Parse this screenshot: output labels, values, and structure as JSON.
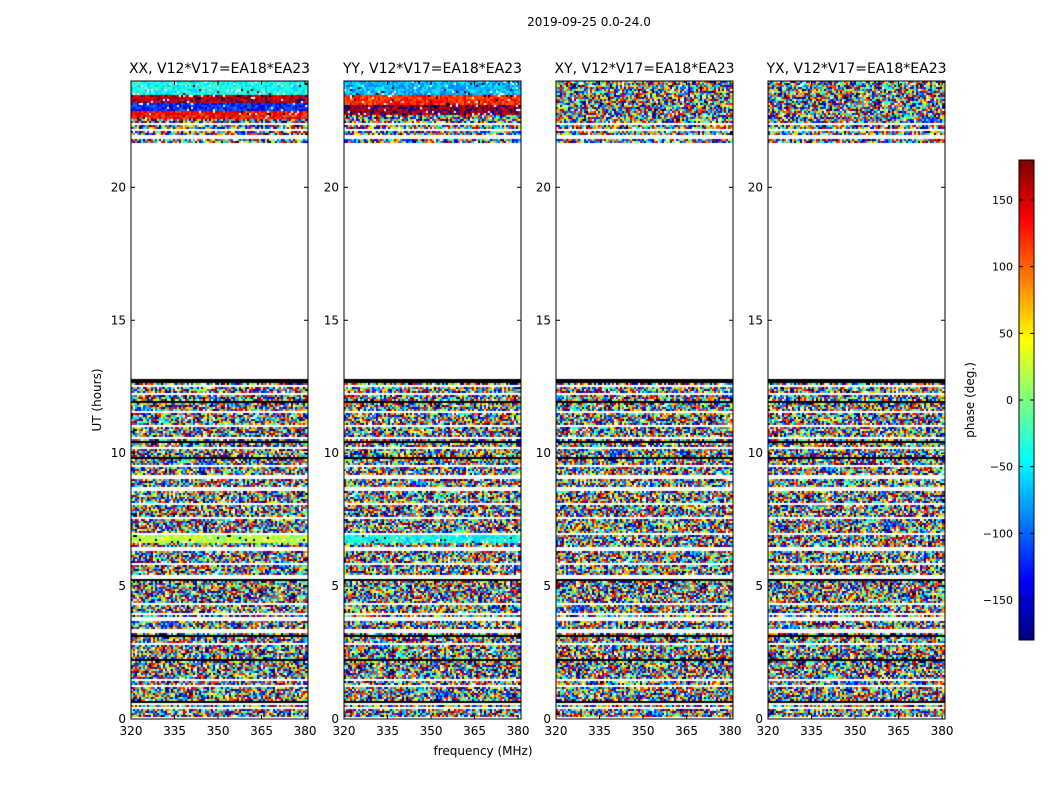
{
  "figure_title": "2019-09-25 0.0-24.0",
  "colors": {
    "flagged": "#ffffff",
    "gap": "#000000",
    "axes": "#000000",
    "jet": [
      "#00007f",
      "#0000ff",
      "#007fff",
      "#00ffff",
      "#7fff7f",
      "#ffff00",
      "#ff7f00",
      "#ff0000",
      "#7f0000"
    ]
  },
  "chart_data": [
    {
      "type": "heatmap",
      "title": "XX, V12*V17=EA18*EA23",
      "xlabel": "",
      "ylabel": "UT (hours)",
      "xlim": [
        320,
        381
      ],
      "ylim": [
        0,
        24
      ],
      "xticks": [
        "320",
        "335",
        "350",
        "365",
        "380"
      ],
      "yticks": [
        "0",
        "5",
        "10",
        "15",
        "20"
      ],
      "z": "phase (deg.)",
      "flagged_ut_range": [
        12.8,
        21.6
      ],
      "coherent_bands": [
        {
          "ut": [
            23.5,
            24.0
          ],
          "phase": -40
        },
        {
          "ut": [
            23.2,
            23.5
          ],
          "phase": 160
        },
        {
          "ut": [
            22.9,
            23.2
          ],
          "phase": -120
        },
        {
          "ut": [
            22.6,
            22.9
          ],
          "phase": 130
        },
        {
          "ut": [
            6.6,
            6.9
          ],
          "phase": 20
        }
      ]
    },
    {
      "type": "heatmap",
      "title": "YY, V12*V17=EA18*EA23",
      "xlabel": "frequency (MHz)",
      "ylabel": "",
      "xlim": [
        320,
        381
      ],
      "ylim": [
        0,
        24
      ],
      "xticks": [
        "320",
        "335",
        "350",
        "365",
        "380"
      ],
      "yticks": [
        "0",
        "5",
        "10",
        "15",
        "20"
      ],
      "z": "phase (deg.)",
      "flagged_ut_range": [
        12.8,
        21.6
      ],
      "coherent_bands": [
        {
          "ut": [
            23.5,
            24.0
          ],
          "phase": -70
        },
        {
          "ut": [
            23.1,
            23.5
          ],
          "phase": 120
        },
        {
          "ut": [
            22.7,
            23.1
          ],
          "phase": 170
        },
        {
          "ut": [
            6.6,
            6.9
          ],
          "phase": -40
        }
      ]
    },
    {
      "type": "heatmap",
      "title": "XY, V12*V17=EA18*EA23",
      "xlabel": "",
      "ylabel": "",
      "xlim": [
        320,
        381
      ],
      "ylim": [
        0,
        24
      ],
      "xticks": [
        "320",
        "335",
        "350",
        "365",
        "380"
      ],
      "yticks": [
        "0",
        "5",
        "10",
        "15",
        "20"
      ],
      "z": "phase (deg.)",
      "flagged_ut_range": [
        12.8,
        21.6
      ],
      "coherent_bands": []
    },
    {
      "type": "heatmap",
      "title": "YX, V12*V17=EA18*EA23",
      "xlabel": "",
      "ylabel": "",
      "xlim": [
        320,
        381
      ],
      "ylim": [
        0,
        24
      ],
      "xticks": [
        "320",
        "335",
        "350",
        "365",
        "380"
      ],
      "yticks": [
        "0",
        "5",
        "10",
        "15",
        "20"
      ],
      "z": "phase (deg.)",
      "flagged_ut_range": [
        12.8,
        21.6
      ],
      "coherent_bands": []
    }
  ],
  "colorbar": {
    "label": "phase (deg.)",
    "range": [
      -180,
      180
    ],
    "ticks": [
      {
        "value": 150,
        "label": "150"
      },
      {
        "value": 100,
        "label": "100"
      },
      {
        "value": 50,
        "label": "50"
      },
      {
        "value": 0,
        "label": "0"
      },
      {
        "value": -50,
        "label": "−50"
      },
      {
        "value": -100,
        "label": "−100"
      },
      {
        "value": -150,
        "label": "−150"
      }
    ]
  },
  "time_segments": {
    "flagged_ut": [
      [
        0.0,
        0.1
      ],
      [
        0.35,
        0.45
      ],
      [
        0.55,
        0.62
      ],
      [
        1.2,
        1.3
      ],
      [
        1.45,
        1.5
      ],
      [
        2.75,
        2.85
      ],
      [
        3.2,
        3.35
      ],
      [
        3.7,
        3.8
      ],
      [
        3.9,
        4.0
      ],
      [
        4.3,
        4.35
      ],
      [
        5.3,
        5.4
      ],
      [
        5.8,
        5.85
      ],
      [
        6.3,
        6.45
      ],
      [
        6.9,
        7.0
      ],
      [
        7.5,
        7.6
      ],
      [
        8.05,
        8.15
      ],
      [
        8.55,
        8.7
      ],
      [
        9.05,
        9.15
      ],
      [
        9.5,
        9.55
      ],
      [
        10.15,
        10.25
      ],
      [
        10.55,
        10.6
      ],
      [
        10.95,
        11.05
      ],
      [
        11.5,
        11.6
      ],
      [
        12.2,
        12.3
      ],
      [
        12.5,
        12.55
      ],
      [
        21.6,
        21.7
      ],
      [
        21.85,
        21.95
      ],
      [
        22.1,
        22.2
      ],
      [
        22.35,
        22.45
      ]
    ],
    "gap_ut": [
      [
        0.62,
        0.66
      ],
      [
        1.1,
        1.13
      ],
      [
        2.2,
        2.23
      ],
      [
        3.1,
        3.13
      ],
      [
        4.6,
        4.62
      ],
      [
        5.2,
        5.24
      ],
      [
        5.5,
        5.52
      ],
      [
        5.95,
        5.98
      ],
      [
        7.3,
        7.32
      ],
      [
        9.8,
        9.83
      ],
      [
        10.42,
        10.46
      ],
      [
        10.65,
        10.68
      ],
      [
        11.2,
        11.23
      ],
      [
        11.9,
        11.93
      ],
      [
        12.65,
        12.7
      ],
      [
        12.75,
        12.8
      ]
    ]
  }
}
